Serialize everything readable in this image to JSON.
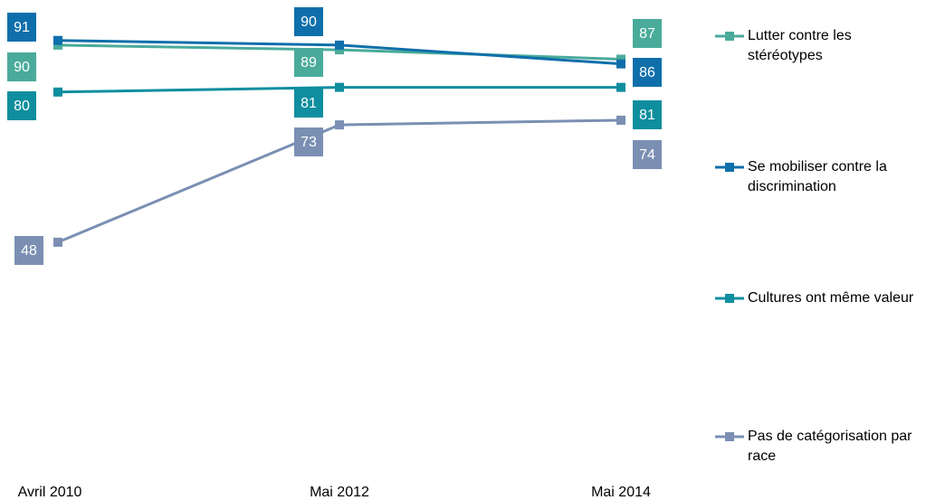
{
  "chart_data": {
    "type": "line",
    "categories": [
      "Avril 2010",
      "Mai 2012",
      "Mai 2014"
    ],
    "ylim": [
      0,
      100
    ],
    "series": [
      {
        "name": "Lutter contre les stéréotypes",
        "color": "#4aab9b",
        "values": [
          90,
          89,
          87
        ]
      },
      {
        "name": "Se mobiliser contre la discrimination",
        "color": "#0f6fab",
        "values": [
          91,
          90,
          86
        ]
      },
      {
        "name": "Cultures ont même valeur",
        "color": "#0e8e9e",
        "values": [
          80,
          81,
          81
        ]
      },
      {
        "name": "Pas de catégorisation par race",
        "color": "#7b8fb3",
        "values": [
          48,
          73,
          74
        ]
      }
    ]
  }
}
